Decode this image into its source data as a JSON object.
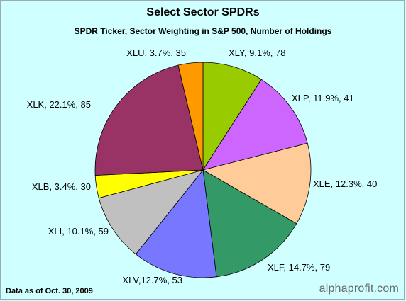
{
  "chart_data": {
    "type": "pie",
    "title": "Select Sector SPDRs",
    "subtitle": "SPDR Ticker, Sector Weighting in S&P 500, Number of Holdings",
    "slices": [
      {
        "ticker": "XLY",
        "weight": 9.1,
        "holdings": 78,
        "label": "XLY, 9.1%, 78",
        "color": "#99cc00"
      },
      {
        "ticker": "XLP",
        "weight": 11.9,
        "holdings": 41,
        "label": "XLP, 11.9%, 41",
        "color": "#cc66ff"
      },
      {
        "ticker": "XLE",
        "weight": 12.3,
        "holdings": 40,
        "label": "XLE, 12.3%, 40",
        "color": "#ffcc99"
      },
      {
        "ticker": "XLF",
        "weight": 14.7,
        "holdings": 79,
        "label": "XLF, 14.7%, 79",
        "color": "#339966"
      },
      {
        "ticker": "XLV",
        "weight": 12.7,
        "holdings": 53,
        "label": "XLV,12.7%, 53",
        "color": "#7777ff"
      },
      {
        "ticker": "XLI",
        "weight": 10.1,
        "holdings": 59,
        "label": "XLI, 10.1%, 59",
        "color": "#c0c0c0"
      },
      {
        "ticker": "XLB",
        "weight": 3.4,
        "holdings": 30,
        "label": "XLB, 3.4%, 30",
        "color": "#ffff00"
      },
      {
        "ticker": "XLK",
        "weight": 22.1,
        "holdings": 85,
        "label": "XLK, 22.1%, 85",
        "color": "#993366"
      },
      {
        "ticker": "XLU",
        "weight": 3.7,
        "holdings": 35,
        "label": "XLU, 3.7%, 35",
        "color": "#ff9900"
      }
    ],
    "start_angle": "12 o'clock",
    "direction": "clockwise",
    "legend": "none"
  },
  "footnote": "Data as of Oct. 30, 2009",
  "watermark": "alphaprofit.com"
}
